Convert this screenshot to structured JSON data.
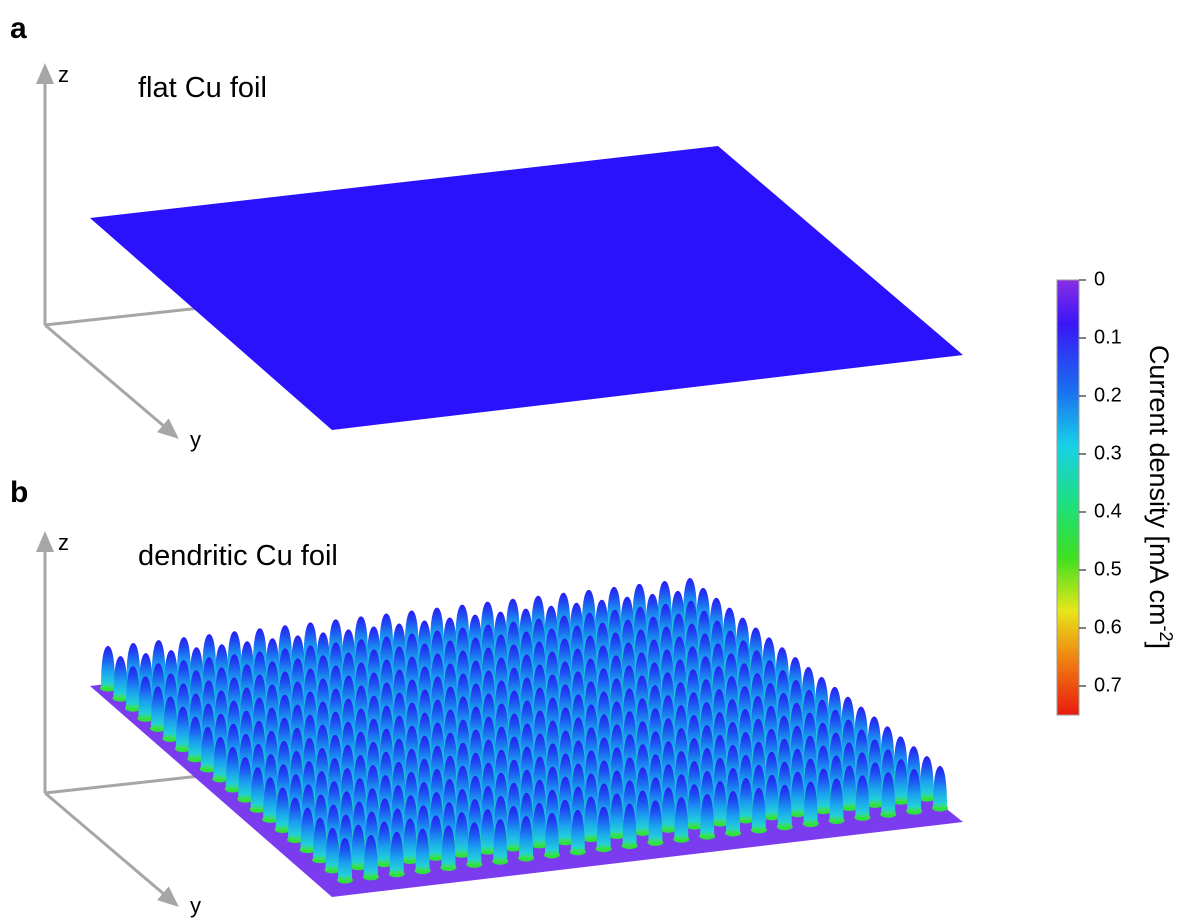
{
  "panels": [
    {
      "letter": "a",
      "title": "flat Cu foil",
      "z_label": "z",
      "y_label": "y"
    },
    {
      "letter": "b",
      "title": "dendritic Cu foil",
      "z_label": "z",
      "y_label": "y"
    }
  ],
  "colorbar": {
    "label": "Current density [mA cm",
    "label_superscript": "-2",
    "label_end": "]",
    "lim": [
      0,
      0.75
    ],
    "ticks": [
      0,
      0.1,
      0.2,
      0.3,
      0.4,
      0.5,
      0.6,
      0.7
    ]
  }
}
